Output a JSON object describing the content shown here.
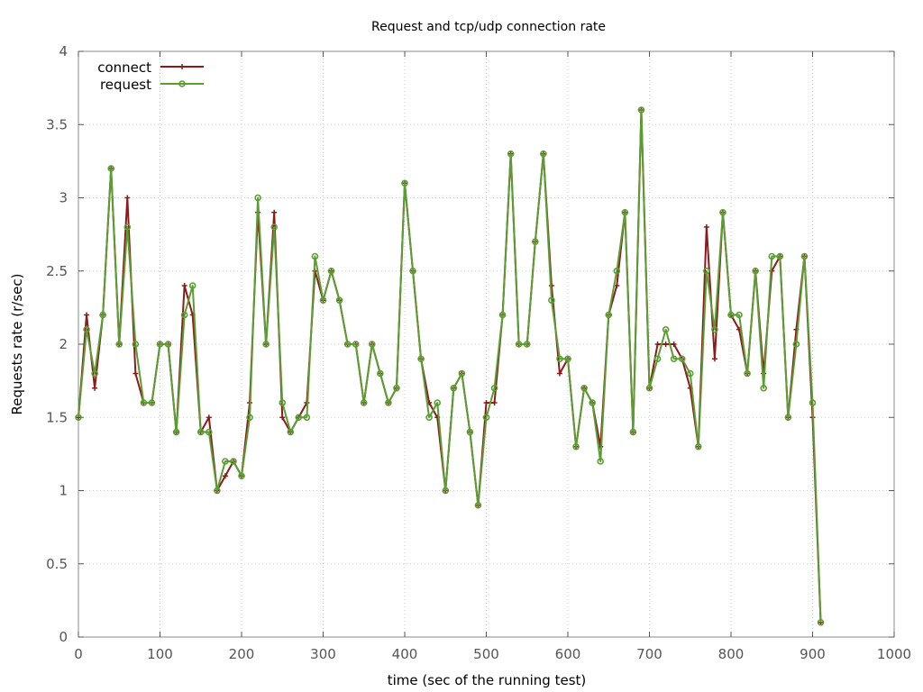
{
  "chart_data": {
    "type": "line",
    "title": "Request and tcp/udp connection rate",
    "xlabel": "time (sec of the running test)",
    "ylabel": "Requests rate (r/sec)",
    "xlim": [
      0,
      1000
    ],
    "ylim": [
      0,
      4
    ],
    "x_ticks": [
      0,
      100,
      200,
      300,
      400,
      500,
      600,
      700,
      800,
      900,
      1000
    ],
    "y_ticks": [
      "0",
      "0.5",
      "1",
      "1.5",
      "2",
      "2.5",
      "3",
      "3.5",
      "4"
    ],
    "grid": true,
    "legend_position": "top-left",
    "x": [
      0,
      10,
      20,
      30,
      40,
      50,
      60,
      70,
      80,
      90,
      100,
      110,
      120,
      130,
      140,
      150,
      160,
      170,
      180,
      190,
      200,
      210,
      220,
      230,
      240,
      250,
      260,
      270,
      280,
      290,
      300,
      310,
      320,
      330,
      340,
      350,
      360,
      370,
      380,
      390,
      400,
      410,
      420,
      430,
      440,
      450,
      460,
      470,
      480,
      490,
      500,
      510,
      520,
      530,
      540,
      550,
      560,
      570,
      580,
      590,
      600,
      610,
      620,
      630,
      640,
      650,
      660,
      670,
      680,
      690,
      700,
      710,
      720,
      730,
      740,
      750,
      760,
      770,
      780,
      790,
      800,
      810,
      820,
      830,
      840,
      850,
      860,
      870,
      880,
      890,
      900,
      910
    ],
    "series": [
      {
        "name": "connect",
        "color": "#8b1a1a",
        "marker": "plus",
        "values": [
          1.5,
          2.2,
          1.7,
          2.2,
          3.2,
          2.0,
          3.0,
          1.8,
          1.6,
          1.6,
          2.0,
          2.0,
          1.4,
          2.4,
          2.2,
          1.4,
          1.5,
          1.0,
          1.1,
          1.2,
          1.1,
          1.6,
          2.9,
          2.0,
          2.9,
          1.5,
          1.4,
          1.5,
          1.6,
          2.5,
          2.3,
          2.5,
          2.3,
          2.0,
          2.0,
          1.6,
          2.0,
          1.8,
          1.6,
          1.7,
          3.1,
          2.5,
          1.9,
          1.6,
          1.5,
          1.0,
          1.7,
          1.8,
          1.4,
          0.9,
          1.6,
          1.6,
          2.2,
          3.3,
          2.0,
          2.0,
          2.7,
          3.3,
          2.4,
          1.8,
          1.9,
          1.3,
          1.7,
          1.6,
          1.3,
          2.2,
          2.4,
          2.9,
          1.4,
          3.6,
          1.7,
          2.0,
          2.0,
          2.0,
          1.9,
          1.7,
          1.3,
          2.8,
          1.9,
          2.9,
          2.2,
          2.1,
          1.8,
          2.5,
          1.8,
          2.5,
          2.6,
          1.5,
          2.1,
          2.6,
          1.5,
          0.1
        ]
      },
      {
        "name": "request",
        "color": "#5a9e32",
        "marker": "circle",
        "values": [
          1.5,
          2.1,
          1.8,
          2.2,
          3.2,
          2.0,
          2.8,
          2.0,
          1.6,
          1.6,
          2.0,
          2.0,
          1.4,
          2.2,
          2.4,
          1.4,
          1.4,
          1.0,
          1.2,
          1.2,
          1.1,
          1.5,
          3.0,
          2.0,
          2.8,
          1.6,
          1.4,
          1.5,
          1.5,
          2.6,
          2.3,
          2.5,
          2.3,
          2.0,
          2.0,
          1.6,
          2.0,
          1.8,
          1.6,
          1.7,
          3.1,
          2.5,
          1.9,
          1.5,
          1.6,
          1.0,
          1.7,
          1.8,
          1.4,
          0.9,
          1.5,
          1.7,
          2.2,
          3.3,
          2.0,
          2.0,
          2.7,
          3.3,
          2.3,
          1.9,
          1.9,
          1.3,
          1.7,
          1.6,
          1.2,
          2.2,
          2.5,
          2.9,
          1.4,
          3.6,
          1.7,
          1.9,
          2.1,
          1.9,
          1.9,
          1.8,
          1.3,
          2.5,
          2.1,
          2.9,
          2.2,
          2.2,
          1.8,
          2.5,
          1.7,
          2.6,
          2.6,
          1.5,
          2.0,
          2.6,
          1.6,
          0.1
        ]
      }
    ]
  }
}
